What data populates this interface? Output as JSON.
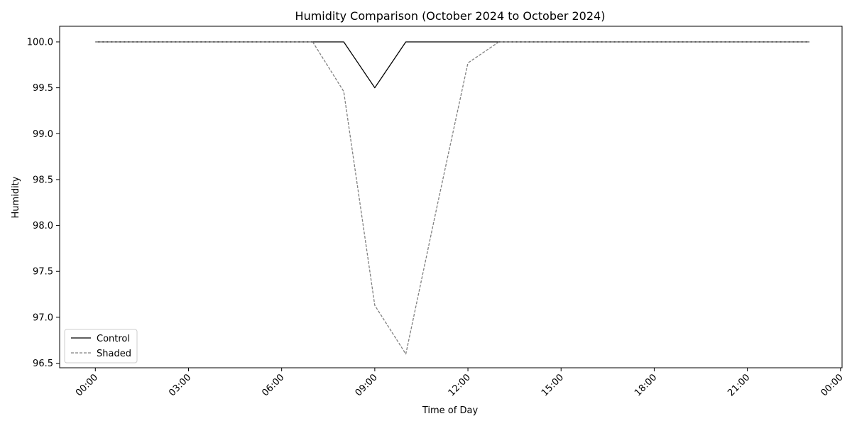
{
  "chart_data": {
    "type": "line",
    "title": "Humidity Comparison (October 2024 to October 2024)",
    "xlabel": "Time of Day",
    "ylabel": "Humidity",
    "x": [
      "00:00",
      "01:00",
      "02:00",
      "03:00",
      "04:00",
      "05:00",
      "06:00",
      "07:00",
      "08:00",
      "09:00",
      "10:00",
      "11:00",
      "12:00",
      "13:00",
      "14:00",
      "15:00",
      "16:00",
      "17:00",
      "18:00",
      "19:00",
      "20:00",
      "21:00",
      "22:00",
      "23:00"
    ],
    "xticks": [
      "00:00",
      "03:00",
      "06:00",
      "09:00",
      "12:00",
      "15:00",
      "18:00",
      "21:00",
      "00:00"
    ],
    "xlim_hours": [
      -1.15,
      24.05
    ],
    "ylim": [
      96.45,
      100.17
    ],
    "yticks": [
      "96.5",
      "97.0",
      "97.5",
      "98.0",
      "98.5",
      "99.0",
      "99.5",
      "100.0"
    ],
    "grid": false,
    "legend_placement": "lower-left",
    "series": [
      {
        "name": "Control",
        "color": "#000000",
        "style": "solid",
        "values": [
          100,
          100,
          100,
          100,
          100,
          100,
          100,
          100,
          100,
          99.5,
          100,
          100,
          100,
          100,
          100,
          100,
          100,
          100,
          100,
          100,
          100,
          100,
          100,
          100
        ]
      },
      {
        "name": "Shaded",
        "color": "#808080",
        "style": "dashed",
        "values": [
          100,
          100,
          100,
          100,
          100,
          100,
          100,
          100,
          99.46,
          97.13,
          96.6,
          98.2,
          99.77,
          100,
          100,
          100,
          100,
          100,
          100,
          100,
          100,
          100,
          100,
          100
        ]
      }
    ]
  }
}
